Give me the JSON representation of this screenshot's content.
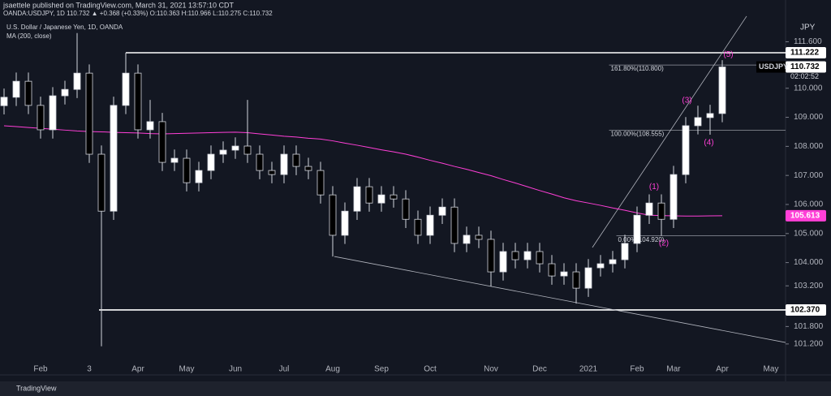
{
  "chart_data": {
    "type": "candlestick",
    "publisher": "jsaettele published on TradingView.com, March 31, 2021 13:57:10 CDT",
    "title": "U.S. Dollar / Japanese Yen, 1D, OANDA",
    "indicator": "MA (200, close)",
    "quote": "OANDA:USDJPY, 1D 110.732 ▲ +0.368 (+0.33%) O:110.363 H:110.966 L:110.275 C:110.732",
    "currency": "JPY",
    "symbol": "USDJPY",
    "countdown": "02:02:52",
    "brand": "TradingView",
    "categories": [
      null,
      null,
      null,
      "Feb",
      null,
      null,
      null,
      "3",
      null,
      null,
      null,
      "Apr",
      null,
      null,
      null,
      "May",
      null,
      null,
      null,
      "Jun",
      null,
      null,
      null,
      "Jul",
      null,
      null,
      null,
      "Aug",
      null,
      null,
      null,
      "Sep",
      null,
      null,
      null,
      "Oct",
      null,
      null,
      null,
      null,
      "Nov",
      null,
      null,
      null,
      "Dec",
      null,
      null,
      null,
      "2021",
      null,
      null,
      null,
      "Feb",
      null,
      null,
      "Mar",
      null,
      null,
      null,
      "Apr",
      null,
      null,
      null,
      "May"
    ],
    "open": [
      109.4,
      109.69,
      110.24,
      109.41,
      108.57,
      109.74,
      109.96,
      110.52,
      107.73,
      105.77,
      109.41,
      110.52,
      108.57,
      108.85,
      107.45,
      107.59,
      106.75,
      107.17,
      107.73,
      107.87,
      108.01,
      107.73,
      107.17,
      107.03,
      107.73,
      107.31,
      107.17,
      106.33,
      104.94,
      105.77,
      106.61,
      106.05,
      106.33,
      106.19,
      105.49,
      104.94,
      105.63,
      105.91,
      104.66,
      104.94,
      104.8,
      103.68,
      104.38,
      104.1,
      104.38,
      103.96,
      103.54,
      103.68,
      103.12,
      103.82,
      103.96,
      104.1,
      104.66,
      105.63,
      106.05,
      105.49,
      107.03,
      108.71,
      108.99,
      109.13,
      null,
      null,
      null,
      null
    ],
    "high": [
      109.99,
      110.54,
      110.54,
      109.71,
      110.04,
      110.26,
      111.9,
      110.82,
      108.03,
      109.71,
      111.22,
      110.82,
      109.6,
      109.15,
      107.89,
      107.89,
      107.47,
      108.03,
      108.17,
      108.31,
      109.6,
      108.03,
      107.47,
      108.03,
      108.03,
      107.61,
      107.47,
      106.63,
      106.07,
      106.91,
      106.91,
      106.63,
      106.63,
      106.49,
      105.79,
      105.93,
      106.21,
      106.21,
      105.24,
      105.24,
      105.1,
      104.68,
      104.68,
      104.68,
      104.68,
      104.26,
      103.98,
      103.98,
      104.12,
      104.26,
      104.4,
      104.96,
      105.93,
      106.35,
      106.35,
      107.33,
      109.01,
      109.4,
      109.43,
      110.966,
      null,
      null,
      null,
      null
    ],
    "low": [
      109.1,
      109.39,
      109.11,
      108.27,
      108.27,
      109.44,
      109.66,
      107.43,
      101.12,
      105.47,
      109.11,
      108.27,
      108.27,
      107.15,
      107.15,
      106.45,
      106.45,
      106.87,
      107.43,
      107.57,
      107.43,
      106.87,
      106.73,
      106.73,
      107.01,
      106.87,
      106.03,
      104.21,
      104.64,
      105.47,
      105.75,
      105.75,
      105.89,
      105.19,
      104.64,
      104.64,
      105.33,
      104.36,
      104.36,
      104.5,
      103.18,
      103.38,
      103.8,
      103.8,
      103.66,
      103.24,
      103.24,
      102.59,
      102.82,
      103.52,
      103.66,
      103.8,
      104.36,
      105.33,
      104.92,
      105.19,
      106.73,
      108.41,
      108.4,
      108.83,
      null,
      null,
      null,
      null
    ],
    "close": [
      109.69,
      110.24,
      109.41,
      108.57,
      109.74,
      109.96,
      110.52,
      107.73,
      105.77,
      109.41,
      110.52,
      108.57,
      108.85,
      107.45,
      107.59,
      106.75,
      107.17,
      107.73,
      107.87,
      108.01,
      107.73,
      107.17,
      107.03,
      107.73,
      107.31,
      107.17,
      106.33,
      104.94,
      105.77,
      106.61,
      106.05,
      106.33,
      106.19,
      105.49,
      104.94,
      105.63,
      105.91,
      104.66,
      104.94,
      104.8,
      103.68,
      104.38,
      104.1,
      104.38,
      103.96,
      103.54,
      103.68,
      103.12,
      103.82,
      103.96,
      104.1,
      104.66,
      105.63,
      106.05,
      105.49,
      107.03,
      108.71,
      108.99,
      109.13,
      110.732,
      null,
      null,
      null,
      null
    ],
    "up_color": "#ffffff",
    "down_color": "#000000",
    "ma": {
      "color": "#ff3fd7",
      "values": [
        108.71,
        108.68,
        108.65,
        108.62,
        108.59,
        108.56,
        108.53,
        108.51,
        108.5,
        108.48,
        108.47,
        108.46,
        108.44,
        108.43,
        108.44,
        108.45,
        108.46,
        108.47,
        108.48,
        108.49,
        108.47,
        108.43,
        108.39,
        108.35,
        108.32,
        108.28,
        108.25,
        108.19,
        108.11,
        108.04,
        107.96,
        107.88,
        107.81,
        107.73,
        107.63,
        107.52,
        107.42,
        107.31,
        107.21,
        107.1,
        106.99,
        106.86,
        106.74,
        106.61,
        106.48,
        106.36,
        106.23,
        106.13,
        106.05,
        105.97,
        105.88,
        105.8,
        105.71,
        105.63,
        105.62,
        105.61,
        105.6,
        105.6,
        105.61,
        105.613,
        null,
        null,
        null,
        null
      ]
    },
    "levels": [
      {
        "value": 111.222,
        "label": "111.222",
        "start": 10
      },
      {
        "value": 102.37,
        "label": "102.370",
        "start": 7.8
      }
    ],
    "fibs": [
      {
        "value": 110.8,
        "label": "161.80%(110.800)",
        "start": 49.7
      },
      {
        "value": 108.555,
        "label": "100.00%(108.555)",
        "start": 49.7
      },
      {
        "value": 104.92,
        "label": "0.00%(104.920)",
        "start": 50.3
      }
    ],
    "trendlines": [
      {
        "x": [
          27.13,
          64.2
        ],
        "y": [
          104.21,
          101.25
        ]
      },
      {
        "x": [
          48.33,
          61
        ],
        "y": [
          104.52,
          112.48
        ]
      }
    ],
    "waves": [
      {
        "label": "(1)",
        "x": 53.4,
        "y": 106.61
      },
      {
        "label": "(2)",
        "x": 54.2,
        "y": 104.66
      },
      {
        "label": "(3)",
        "x": 56.1,
        "y": 109.58
      },
      {
        "label": "(4)",
        "x": 57.9,
        "y": 108.12
      },
      {
        "label": "(5)",
        "x": 59.5,
        "y": 111.16
      }
    ],
    "wave_color": "#ff3fd7",
    "ylim": [
      100.135,
      112.255
    ],
    "yticks": [
      {
        "value": 101.2,
        "label": "101.200"
      },
      {
        "value": 101.8,
        "label": "101.800"
      },
      {
        "value": 103.2,
        "label": "103.200"
      },
      {
        "value": 104,
        "label": "104.000"
      },
      {
        "value": 105,
        "label": "105.000"
      },
      {
        "value": 106,
        "label": "106.000"
      },
      {
        "value": 107,
        "label": "107.000"
      },
      {
        "value": 108,
        "label": "108.000"
      },
      {
        "value": 109,
        "label": "109.000"
      },
      {
        "value": 110,
        "label": "110.000"
      },
      {
        "value": 111.6,
        "label": "111.600"
      }
    ]
  }
}
